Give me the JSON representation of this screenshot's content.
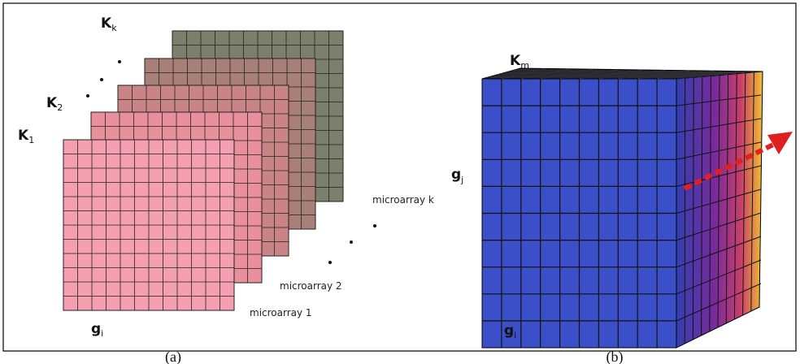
{
  "panel_a": {
    "caption": "(a)",
    "layer_labels": [
      {
        "main": "K",
        "sub": "k"
      },
      {
        "main": "K",
        "sub": "2"
      },
      {
        "main": "K",
        "sub": "1"
      }
    ],
    "axis_label": {
      "main": "g",
      "sub": "i"
    },
    "microarray_labels": [
      "microarray 1",
      "microarray 2",
      "microarray k"
    ]
  },
  "panel_b": {
    "caption": "(b)",
    "top_label": {
      "main": "K",
      "sub": "m"
    },
    "side_label": {
      "main": "g",
      "sub": "j"
    },
    "bottom_label": {
      "main": "g",
      "sub": "i"
    }
  }
}
